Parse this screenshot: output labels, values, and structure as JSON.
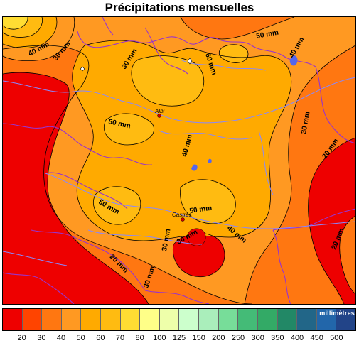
{
  "title": "Précipitations mensuelles",
  "legend": {
    "unit": "millimètres",
    "colors": [
      "#ee0000",
      "#ff4400",
      "#ff7711",
      "#ff9922",
      "#ffaa00",
      "#ffbb11",
      "#ffdd33",
      "#ffff88",
      "#eeffaa",
      "#ccffcc",
      "#aaeebb",
      "#77dd99",
      "#44bb77",
      "#33aa66",
      "#228866",
      "#226688",
      "#2266aa",
      "#224488"
    ],
    "ticks": [
      "20",
      "30",
      "40",
      "50",
      "60",
      "70",
      "80",
      "100",
      "125",
      "150",
      "200",
      "250",
      "300",
      "350",
      "400",
      "450",
      "500"
    ]
  },
  "contour_labels": [
    {
      "text": "40 mm"
    },
    {
      "text": "30 mm"
    },
    {
      "text": "30 mm"
    },
    {
      "text": "50 mm"
    },
    {
      "text": "60 mm"
    },
    {
      "text": "40 mm"
    },
    {
      "text": "50 mm"
    },
    {
      "text": "40 mm"
    },
    {
      "text": "30 mm"
    },
    {
      "text": "20 mm"
    },
    {
      "text": "50 mm"
    },
    {
      "text": "50 mm"
    },
    {
      "text": "30 mm"
    },
    {
      "text": "40 mm"
    },
    {
      "text": "30 mm"
    },
    {
      "text": "20 mm"
    },
    {
      "text": "20 mm"
    },
    {
      "text": "30 mm"
    }
  ],
  "cities": [
    {
      "name": "Albi"
    },
    {
      "name": "Castres"
    }
  ]
}
